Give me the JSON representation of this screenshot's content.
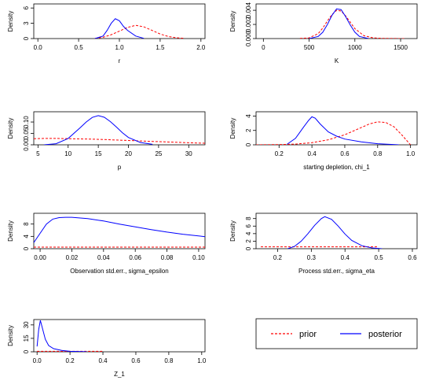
{
  "chart_data": [
    {
      "type": "line",
      "xlabel": "r",
      "ylabel": "Density",
      "xlim": [
        -0.05,
        2.05
      ],
      "ylim": [
        0,
        6.8
      ],
      "xticks": [
        "0.0",
        "0.5",
        "1.0",
        "1.5",
        "2.0"
      ],
      "yticks": [
        "0",
        "3",
        "6"
      ],
      "series": [
        {
          "name": "prior",
          "x": [
            0.7,
            0.8,
            0.9,
            1.0,
            1.1,
            1.2,
            1.3,
            1.4,
            1.5,
            1.6,
            1.7,
            1.8
          ],
          "y": [
            0.05,
            0.25,
            0.75,
            1.45,
            2.2,
            2.6,
            2.3,
            1.6,
            0.9,
            0.4,
            0.15,
            0.05
          ]
        },
        {
          "name": "posterior",
          "x": [
            0.7,
            0.8,
            0.85,
            0.9,
            0.95,
            1.0,
            1.05,
            1.1,
            1.2,
            1.3
          ],
          "y": [
            0.0,
            0.5,
            1.6,
            3.0,
            3.9,
            3.5,
            2.4,
            1.6,
            0.5,
            0.05
          ]
        }
      ]
    },
    {
      "type": "line",
      "xlabel": "K",
      "ylabel": "Density",
      "xlim": [
        -80,
        1680
      ],
      "ylim": [
        0,
        0.0049
      ],
      "xticks": [
        "0",
        "500",
        "1000",
        "1500"
      ],
      "yticks": [
        "0.000",
        "0.002",
        "0.004"
      ],
      "series": [
        {
          "name": "prior",
          "x": [
            400,
            500,
            600,
            650,
            700,
            750,
            800,
            850,
            900,
            950,
            1000,
            1100,
            1200,
            1300,
            1400,
            1550
          ],
          "y": [
            2e-05,
            0.0001,
            0.0007,
            0.0015,
            0.0025,
            0.0034,
            0.004,
            0.0039,
            0.0032,
            0.0023,
            0.0014,
            0.0004,
            0.0001,
            3e-05,
            1e-05,
            0.0
          ]
        },
        {
          "name": "posterior",
          "x": [
            500,
            600,
            650,
            700,
            750,
            800,
            850,
            900,
            950,
            1000,
            1050,
            1150
          ],
          "y": [
            0.0,
            0.0003,
            0.0009,
            0.002,
            0.0033,
            0.0042,
            0.0041,
            0.0031,
            0.0019,
            0.0009,
            0.0003,
            0.0
          ]
        }
      ]
    },
    {
      "type": "line",
      "xlabel": "p",
      "ylabel": "Density",
      "xlim": [
        4.3,
        32.7
      ],
      "ylim": [
        0,
        0.145
      ],
      "xticks": [
        "5",
        "10",
        "15",
        "20",
        "25",
        "30"
      ],
      "yticks": [
        "0.00",
        "0.05",
        "0.10"
      ],
      "series": [
        {
          "name": "prior",
          "x": [
            4.3,
            6,
            8,
            10,
            12,
            14,
            16,
            18,
            20,
            22,
            24,
            26,
            28,
            30,
            32.7
          ],
          "y": [
            0.027,
            0.028,
            0.028,
            0.027,
            0.026,
            0.025,
            0.023,
            0.021,
            0.019,
            0.017,
            0.015,
            0.013,
            0.011,
            0.009,
            0.007
          ]
        },
        {
          "name": "posterior",
          "x": [
            6,
            8,
            10,
            12,
            13,
            14,
            15,
            16,
            17,
            18,
            19,
            20,
            22,
            24
          ],
          "y": [
            0.0,
            0.005,
            0.028,
            0.075,
            0.1,
            0.12,
            0.128,
            0.121,
            0.102,
            0.078,
            0.053,
            0.032,
            0.01,
            0.002
          ]
        }
      ]
    },
    {
      "type": "line",
      "xlabel": "starting depletion, chi_1",
      "ylabel": "Density",
      "xlim": [
        0.06,
        1.04
      ],
      "ylim": [
        0,
        4.6
      ],
      "xticks": [
        "0.2",
        "0.4",
        "0.6",
        "0.8",
        "1.0"
      ],
      "yticks": [
        "0",
        "2",
        "4"
      ],
      "series": [
        {
          "name": "prior",
          "x": [
            0.06,
            0.2,
            0.3,
            0.4,
            0.5,
            0.6,
            0.7,
            0.75,
            0.8,
            0.85,
            0.9,
            0.95,
            1.0
          ],
          "y": [
            0.0,
            0.03,
            0.1,
            0.3,
            0.7,
            1.4,
            2.4,
            2.9,
            3.2,
            3.1,
            2.5,
            1.3,
            0.0
          ]
        },
        {
          "name": "posterior",
          "x": [
            0.25,
            0.3,
            0.35,
            0.38,
            0.4,
            0.42,
            0.45,
            0.5,
            0.55,
            0.6,
            0.7,
            0.8,
            0.93
          ],
          "y": [
            0.1,
            0.9,
            2.5,
            3.4,
            3.9,
            3.7,
            2.9,
            1.8,
            1.2,
            0.8,
            0.4,
            0.15,
            0.0
          ]
        }
      ]
    },
    {
      "type": "line",
      "xlabel": "Observation std.err., sigma_epsilon",
      "ylabel": "Density",
      "xlim": [
        -0.004,
        0.104
      ],
      "ylim": [
        0,
        11.5
      ],
      "xticks": [
        "0.00",
        "0.02",
        "0.04",
        "0.06",
        "0.08",
        "0.10"
      ],
      "yticks": [
        "0",
        "4",
        "8"
      ],
      "series": [
        {
          "name": "prior",
          "x": [
            -0.004,
            0.104
          ],
          "y": [
            0.5,
            0.5
          ]
        },
        {
          "name": "posterior",
          "x": [
            -0.004,
            0.0,
            0.004,
            0.008,
            0.012,
            0.016,
            0.02,
            0.03,
            0.04,
            0.05,
            0.06,
            0.07,
            0.08,
            0.09,
            0.104
          ],
          "y": [
            2.0,
            5.0,
            8.0,
            9.6,
            10.1,
            10.2,
            10.2,
            9.8,
            9.0,
            8.0,
            7.1,
            6.2,
            5.4,
            4.7,
            3.9
          ]
        }
      ]
    },
    {
      "type": "line",
      "xlabel": "Process std.err., sigma_eta",
      "ylabel": "Density",
      "xlim": [
        0.136,
        0.614
      ],
      "ylim": [
        0,
        9.4
      ],
      "xticks": [
        "0.2",
        "0.3",
        "0.4",
        "0.5",
        "0.6"
      ],
      "yticks": [
        "0",
        "2",
        "4",
        "6",
        "8"
      ],
      "series": [
        {
          "name": "prior",
          "x": [
            0.15,
            0.25,
            0.3,
            0.35,
            0.4,
            0.45,
            0.5
          ],
          "y": [
            0.5,
            0.5,
            0.5,
            0.5,
            0.5,
            0.5,
            0.5
          ]
        },
        {
          "name": "posterior",
          "x": [
            0.23,
            0.25,
            0.27,
            0.29,
            0.31,
            0.33,
            0.34,
            0.36,
            0.38,
            0.4,
            0.42,
            0.45,
            0.48,
            0.51
          ],
          "y": [
            0.0,
            0.6,
            2.0,
            4.0,
            6.2,
            8.0,
            8.5,
            7.8,
            6.0,
            3.9,
            2.2,
            0.8,
            0.2,
            0.0
          ]
        }
      ]
    },
    {
      "type": "line",
      "xlabel": "Z_1",
      "ylabel": "Density",
      "xlim": [
        -0.02,
        1.02
      ],
      "ylim": [
        0,
        36
      ],
      "xticks": [
        "0.0",
        "0.2",
        "0.4",
        "0.6",
        "0.8",
        "1.0"
      ],
      "yticks": [
        "0",
        "15",
        "30"
      ],
      "series": [
        {
          "name": "prior",
          "x": [
            0.0,
            0.05,
            0.1,
            0.15,
            0.2,
            0.3,
            0.4
          ],
          "y": [
            0.5,
            0.5,
            0.5,
            0.5,
            0.5,
            0.5,
            0.5
          ]
        },
        {
          "name": "posterior",
          "x": [
            0.0,
            0.01,
            0.02,
            0.03,
            0.05,
            0.07,
            0.1,
            0.15,
            0.2,
            0.3
          ],
          "y": [
            6,
            25,
            35,
            28,
            14,
            7,
            3.5,
            1.5,
            0.5,
            0.1
          ]
        }
      ]
    }
  ],
  "legend": {
    "entries": [
      {
        "label": "prior",
        "color": "#ff0000",
        "dash": true
      },
      {
        "label": "posterior",
        "color": "#0000ff",
        "dash": false
      }
    ]
  },
  "colors": {
    "prior": "#ff0000",
    "posterior": "#0000ff"
  }
}
